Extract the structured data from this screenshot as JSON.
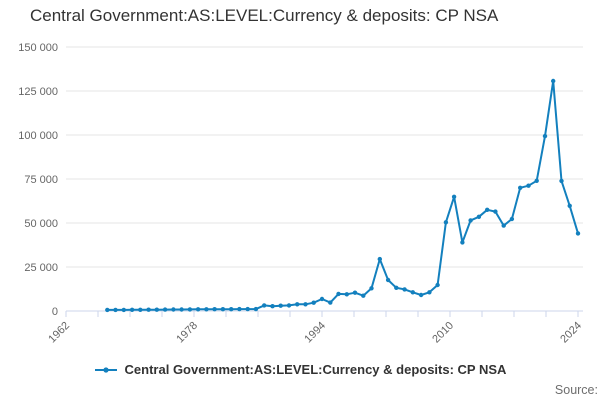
{
  "title": "Central Government:AS:LEVEL:Currency & deposits: CP NSA",
  "legend": {
    "label": "Central Government:AS:LEVEL:Currency & deposits: CP NSA"
  },
  "source": {
    "label": "Source:"
  },
  "colors": {
    "series": "#1380be",
    "grid": "#e6e6e6",
    "axis": "#ccd6eb",
    "title_text": "#333333",
    "tick_text": "#666666",
    "source_text": "#6e6e6e"
  },
  "chart_data": {
    "type": "line",
    "title": "Central Government:AS:LEVEL:Currency & deposits: CP NSA",
    "xlabel": "",
    "ylabel": "",
    "grid": "horizontal",
    "legend_position": "bottom",
    "marker": "circle",
    "ylim": [
      0,
      150000
    ],
    "y_ticks": [
      0,
      25000,
      50000,
      75000,
      100000,
      125000,
      150000
    ],
    "y_tick_labels": [
      "0",
      "25 000",
      "50 000",
      "75 000",
      "100 000",
      "125 000",
      "150 000"
    ],
    "x_axis_range": [
      1962,
      2024
    ],
    "x_tick_count": 17,
    "x_label_every": 4,
    "x_labeled_ticks": [
      "1962",
      "1978",
      "1994",
      "2010",
      "2024"
    ],
    "x": [
      1967,
      1968,
      1969,
      1970,
      1971,
      1972,
      1973,
      1974,
      1975,
      1976,
      1977,
      1978,
      1979,
      1980,
      1981,
      1982,
      1983,
      1984,
      1985,
      1986,
      1987,
      1988,
      1989,
      1990,
      1991,
      1992,
      1993,
      1994,
      1995,
      1996,
      1997,
      1998,
      1999,
      2000,
      2001,
      2002,
      2003,
      2004,
      2005,
      2006,
      2007,
      2008,
      2009,
      2010,
      2011,
      2012,
      2013,
      2014,
      2015,
      2016,
      2017,
      2018,
      2019,
      2020,
      2021,
      2022,
      2023,
      2024
    ],
    "series": [
      {
        "name": "Central Government:AS:LEVEL:Currency & deposits: CP NSA",
        "color": "#1380be",
        "values": [
          600,
          620,
          650,
          680,
          700,
          730,
          760,
          800,
          830,
          870,
          900,
          940,
          970,
          1000,
          1020,
          1050,
          1070,
          1090,
          1100,
          3200,
          2700,
          3000,
          3200,
          3800,
          3800,
          4700,
          6800,
          4800,
          9700,
          9500,
          10400,
          8700,
          12900,
          29500,
          17600,
          13200,
          12300,
          10600,
          9100,
          10600,
          14800,
          50400,
          64900,
          39000,
          51500,
          53500,
          57500,
          56500,
          48500,
          52300,
          70000,
          71200,
          74000,
          99400,
          130700,
          73900,
          59800,
          44100
        ]
      }
    ]
  }
}
